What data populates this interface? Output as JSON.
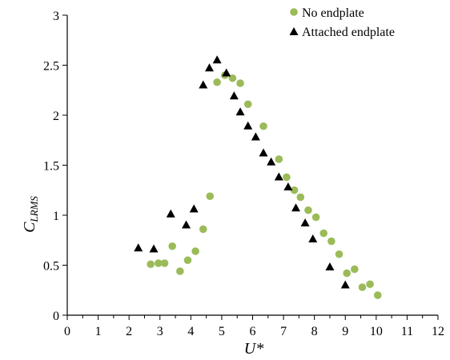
{
  "chart_data": {
    "type": "scatter",
    "title": "",
    "xlabel": "U*",
    "ylabel_main": "C",
    "ylabel_sub": "LRMS",
    "xlim": [
      0,
      12
    ],
    "ylim": [
      0,
      3
    ],
    "x_ticks": [
      "0",
      "1",
      "2",
      "3",
      "4",
      "5",
      "6",
      "7",
      "8",
      "9",
      "10",
      "11",
      "12"
    ],
    "y_ticks": [
      "0",
      "0.5",
      "1",
      "1.5",
      "2",
      "2.5",
      "3"
    ],
    "grid": false,
    "legend_position": "top-right",
    "series": [
      {
        "name": "No endplate",
        "marker": "circle",
        "color": "#9bbb59",
        "points": [
          [
            2.7,
            0.51
          ],
          [
            2.95,
            0.52
          ],
          [
            3.15,
            0.52
          ],
          [
            3.4,
            0.69
          ],
          [
            3.65,
            0.44
          ],
          [
            3.9,
            0.55
          ],
          [
            4.15,
            0.64
          ],
          [
            4.4,
            0.86
          ],
          [
            4.62,
            1.19
          ],
          [
            4.85,
            2.33
          ],
          [
            5.1,
            2.4
          ],
          [
            5.35,
            2.37
          ],
          [
            5.6,
            2.32
          ],
          [
            5.85,
            2.11
          ],
          [
            6.35,
            1.89
          ],
          [
            6.85,
            1.56
          ],
          [
            7.1,
            1.38
          ],
          [
            7.35,
            1.25
          ],
          [
            7.55,
            1.18
          ],
          [
            7.8,
            1.05
          ],
          [
            8.05,
            0.98
          ],
          [
            8.3,
            0.82
          ],
          [
            8.55,
            0.74
          ],
          [
            8.8,
            0.61
          ],
          [
            9.05,
            0.42
          ],
          [
            9.3,
            0.46
          ],
          [
            9.55,
            0.28
          ],
          [
            9.8,
            0.31
          ],
          [
            10.05,
            0.2
          ]
        ]
      },
      {
        "name": "Attached endplate",
        "marker": "triangle",
        "color": "#000000",
        "points": [
          [
            2.3,
            0.67
          ],
          [
            2.8,
            0.66
          ],
          [
            3.35,
            1.01
          ],
          [
            3.85,
            0.9
          ],
          [
            4.1,
            1.06
          ],
          [
            4.4,
            2.3
          ],
          [
            4.6,
            2.47
          ],
          [
            4.85,
            2.55
          ],
          [
            5.15,
            2.42
          ],
          [
            5.4,
            2.19
          ],
          [
            5.6,
            2.03
          ],
          [
            5.85,
            1.89
          ],
          [
            6.1,
            1.78
          ],
          [
            6.35,
            1.62
          ],
          [
            6.6,
            1.53
          ],
          [
            6.85,
            1.38
          ],
          [
            7.15,
            1.28
          ],
          [
            7.4,
            1.07
          ],
          [
            7.7,
            0.92
          ],
          [
            7.95,
            0.76
          ],
          [
            8.5,
            0.48
          ],
          [
            9.0,
            0.3
          ]
        ]
      }
    ]
  }
}
